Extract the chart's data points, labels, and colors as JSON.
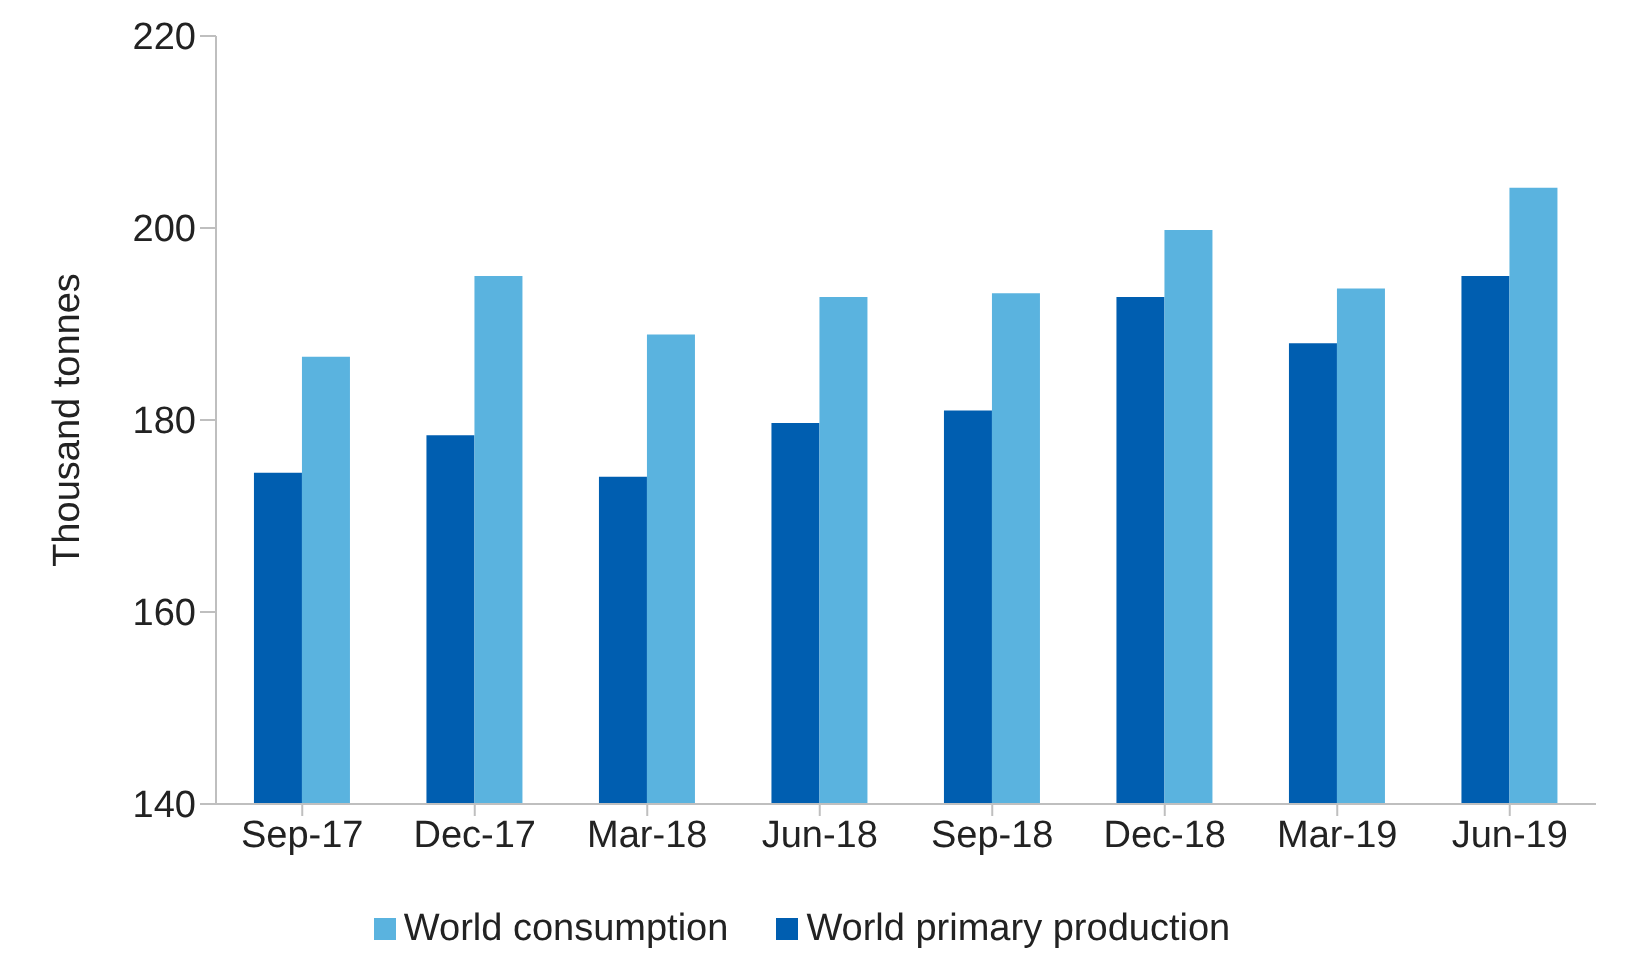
{
  "chart_data": {
    "type": "bar",
    "ylabel": "Thousand tonnes",
    "categories": [
      "Sep-17",
      "Dec-17",
      "Mar-18",
      "Jun-18",
      "Sep-18",
      "Dec-18",
      "Mar-19",
      "Jun-19"
    ],
    "series": [
      {
        "name": "World primary production",
        "color": "#005eb0",
        "values": [
          174.5,
          178.4,
          174.1,
          179.7,
          181.0,
          192.8,
          188.0,
          195.0
        ]
      },
      {
        "name": "World consumption",
        "color": "#5ab3df",
        "values": [
          186.6,
          195.0,
          188.9,
          192.8,
          193.2,
          199.8,
          193.7,
          204.2
        ]
      }
    ],
    "ylim": [
      140,
      220
    ],
    "yticks": [
      140,
      160,
      180,
      200,
      220
    ],
    "grid": false,
    "legend": "bottom"
  }
}
